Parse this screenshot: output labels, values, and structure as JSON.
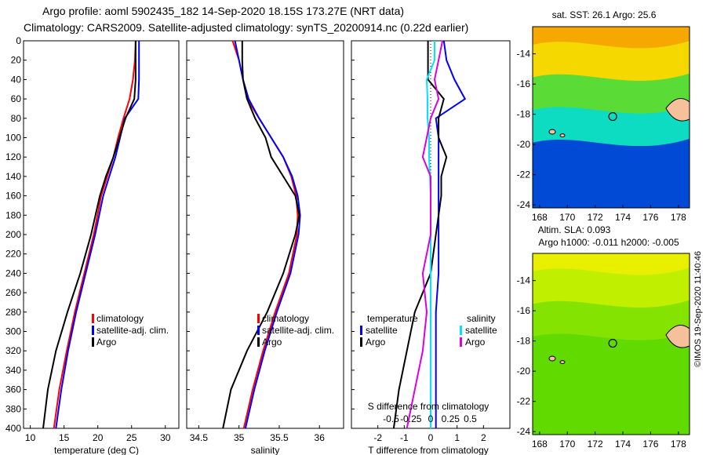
{
  "header": {
    "line1": "Argo profile: aoml 5902435_182 14-Sep-2020 18.15S 173.27E (NRT data)",
    "line2": "Climatology: CARS2009. Satellite-adjusted climatology: synTS_20200914.nc (0.22d earlier)"
  },
  "colors": {
    "climatology": "#ff0000",
    "satellite": "#0000ff",
    "argo": "#000000",
    "sal_satellite": "#00e5ff",
    "sal_argo": "#dd00dd"
  },
  "chart_data": [
    {
      "type": "line",
      "id": "temperature",
      "xlabel": "temperature (deg C)",
      "ylabel": "",
      "xlim": [
        9,
        32
      ],
      "ylim": [
        400,
        0
      ],
      "xticks": [
        10,
        15,
        20,
        25,
        30
      ],
      "yticks": [
        0,
        20,
        40,
        60,
        80,
        100,
        120,
        140,
        160,
        180,
        200,
        220,
        240,
        260,
        280,
        300,
        320,
        340,
        360,
        380,
        400
      ],
      "legend": [
        "climatology",
        "satellite-adj. clim.",
        "Argo"
      ],
      "series": [
        {
          "name": "climatology",
          "color": "#ff0000",
          "depth": [
            0,
            20,
            40,
            60,
            80,
            100,
            120,
            140,
            160,
            200,
            240,
            280,
            320,
            360,
            400
          ],
          "values": [
            25.6,
            25.5,
            25.2,
            24.7,
            23.8,
            23.0,
            22.3,
            21.4,
            20.5,
            19.4,
            18.0,
            16.6,
            15.4,
            14.3,
            13.5
          ]
        },
        {
          "name": "satellite-adj. clim.",
          "color": "#0000ff",
          "depth": [
            0,
            20,
            40,
            60,
            80,
            100,
            120,
            140,
            160,
            200,
            240,
            280,
            320,
            360,
            400
          ],
          "values": [
            26.1,
            26.1,
            26.1,
            26.0,
            24.0,
            23.3,
            22.6,
            21.7,
            20.8,
            19.6,
            18.2,
            16.8,
            15.6,
            14.6,
            13.8
          ]
        },
        {
          "name": "Argo",
          "color": "#000000",
          "depth": [
            0,
            20,
            40,
            60,
            80,
            100,
            120,
            140,
            160,
            200,
            240,
            280,
            320,
            360,
            400
          ],
          "values": [
            25.6,
            25.6,
            25.6,
            25.4,
            24.1,
            23.2,
            22.3,
            21.2,
            20.3,
            19.0,
            17.4,
            15.5,
            13.8,
            12.6,
            11.9
          ]
        }
      ]
    },
    {
      "type": "line",
      "id": "salinity",
      "xlabel": "salinity",
      "ylabel": "",
      "xlim": [
        34.35,
        36.3
      ],
      "ylim": [
        400,
        0
      ],
      "xticks": [
        34.5,
        35,
        35.5,
        36
      ],
      "xtick_labels": [
        "34.5",
        "35",
        "35.5",
        "36"
      ],
      "legend": [
        "climatology",
        "satellite-adj. clim.",
        "Argo"
      ],
      "series": [
        {
          "name": "climatology",
          "color": "#ff0000",
          "depth": [
            0,
            20,
            40,
            60,
            80,
            100,
            120,
            140,
            160,
            180,
            200,
            240,
            280,
            320,
            360,
            400
          ],
          "values": [
            34.92,
            35.0,
            35.05,
            35.1,
            35.25,
            35.4,
            35.55,
            35.65,
            35.71,
            35.73,
            35.72,
            35.62,
            35.45,
            35.3,
            35.17,
            35.06
          ]
        },
        {
          "name": "satellite-adj. clim.",
          "color": "#0000ff",
          "depth": [
            0,
            20,
            40,
            60,
            80,
            100,
            120,
            140,
            160,
            180,
            200,
            240,
            280,
            320,
            360,
            400
          ],
          "values": [
            34.95,
            35.0,
            35.05,
            35.12,
            35.25,
            35.4,
            35.55,
            35.66,
            35.73,
            35.76,
            35.74,
            35.64,
            35.47,
            35.32,
            35.19,
            35.08
          ]
        },
        {
          "name": "Argo",
          "color": "#000000",
          "depth": [
            0,
            20,
            40,
            60,
            80,
            100,
            120,
            140,
            160,
            180,
            200,
            240,
            280,
            320,
            360,
            400
          ],
          "values": [
            35.04,
            35.04,
            35.05,
            35.1,
            35.2,
            35.33,
            35.4,
            35.55,
            35.7,
            35.75,
            35.7,
            35.55,
            35.35,
            35.1,
            34.9,
            34.8
          ]
        }
      ]
    },
    {
      "type": "line",
      "id": "differences",
      "xlabel": "T difference from climatology",
      "ylabel": "",
      "xlim": [
        -3,
        3
      ],
      "ylim": [
        400,
        0
      ],
      "xticks": [
        -2,
        -1,
        0,
        1,
        2
      ],
      "legend_t": {
        "heading": "temperature",
        "items": [
          "satellite",
          "Argo"
        ]
      },
      "legend_s": {
        "heading": "salinity",
        "items": [
          "satellite",
          "Argo"
        ]
      },
      "s_axis": {
        "label": "S difference from climatology",
        "ticks": [
          -0.5,
          -0.25,
          0,
          0.25,
          0.5
        ],
        "tick_labels": [
          "-0.5",
          "-0.25",
          "0",
          "0.25",
          "0.5"
        ]
      },
      "series": [
        {
          "name": "T satellite",
          "color": "#0000ff",
          "depth": [
            0,
            20,
            40,
            60,
            80,
            100,
            120,
            140,
            160,
            200,
            240,
            280,
            320,
            360,
            400
          ],
          "values": [
            0.5,
            0.6,
            0.9,
            1.3,
            0.2,
            0.3,
            0.3,
            0.3,
            0.3,
            0.3,
            0.3,
            0.2,
            0.2,
            0.2,
            0.2
          ]
        },
        {
          "name": "T Argo",
          "color": "#000000",
          "depth": [
            0,
            20,
            40,
            60,
            80,
            100,
            120,
            140,
            160,
            200,
            240,
            280,
            320,
            360,
            400
          ],
          "values": [
            -0.1,
            -0.1,
            -0.1,
            0.5,
            0.3,
            0.3,
            0.6,
            0.4,
            0.4,
            0.2,
            0.0,
            -0.6,
            -0.9,
            -1.2,
            -1.4
          ]
        },
        {
          "name": "S satellite",
          "color": "#00e5ff",
          "depth": [
            0,
            20,
            40,
            60,
            80,
            100,
            120,
            140,
            160,
            200,
            240,
            280,
            320,
            360,
            400
          ],
          "values": [
            0.05,
            0.05,
            -0.05,
            -0.04,
            -0.04,
            -0.02,
            -0.02,
            -0.01,
            0.0,
            0.0,
            0.0,
            0.0,
            0.0,
            0.0,
            0.0
          ]
        },
        {
          "name": "S Argo",
          "color": "#dd00dd",
          "depth": [
            0,
            20,
            40,
            60,
            80,
            100,
            120,
            140,
            160,
            200,
            240,
            280,
            320,
            360,
            400
          ],
          "values": [
            0.15,
            0.1,
            0.05,
            0.1,
            0.0,
            -0.05,
            -0.1,
            0.0,
            0.0,
            0.0,
            -0.1,
            -0.05,
            -0.1,
            -0.2,
            -0.3
          ]
        }
      ]
    }
  ],
  "maps": {
    "top": {
      "title": "sat. SST: 26.1  Argo: 25.6"
    },
    "bottom": {
      "title1": "Altim. SLA: 0.093",
      "title2": "Argo h1000: -0.011 h2000: -0.005"
    },
    "xticks": [
      168,
      170,
      172,
      174,
      176,
      178
    ],
    "yticks": [
      -14,
      -16,
      -18,
      -20,
      -22,
      -24
    ],
    "lon": [
      167.5,
      178.8
    ],
    "lat": [
      -12.2,
      -24.2
    ],
    "float": {
      "lon": 173.27,
      "lat": -18.15
    }
  },
  "footer": "©IMOS 19-Sep-2020 11:40:46"
}
